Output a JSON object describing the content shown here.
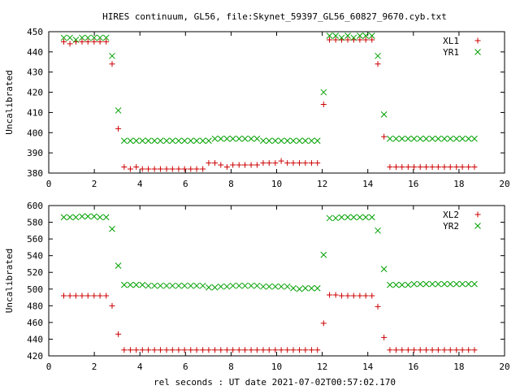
{
  "title": "HIRES continuum, GL56, file:Skynet_59397_GL56_60827_9670.cyb.txt",
  "xlabel": "rel seconds : UT date 2021-07-02T00:57:02.170",
  "colors": {
    "XL": "#cc0000",
    "YR": "#00a000"
  },
  "chart_data": [
    {
      "type": "scatter",
      "ylabel": "Uncalibrated",
      "xlim": [
        0,
        20
      ],
      "ylim": [
        380,
        450
      ],
      "xticks": [
        0,
        2,
        4,
        6,
        8,
        10,
        12,
        14,
        16,
        18,
        20
      ],
      "yticks": [
        380,
        390,
        400,
        410,
        420,
        430,
        440,
        450
      ],
      "legend_position": "top-right",
      "series": [
        {
          "name": "XL1",
          "marker": "plus",
          "color": "#cc0000",
          "x": [
            0.66,
            0.93,
            1.19,
            1.46,
            1.72,
            1.99,
            2.25,
            2.52,
            2.78,
            3.05,
            3.31,
            3.58,
            3.84,
            4.11,
            4.37,
            4.64,
            4.9,
            5.17,
            5.43,
            5.7,
            5.96,
            6.23,
            6.49,
            6.76,
            7.02,
            7.29,
            7.55,
            7.82,
            8.08,
            8.35,
            8.61,
            8.88,
            9.14,
            9.41,
            9.67,
            9.94,
            10.2,
            10.47,
            10.73,
            11.0,
            11.26,
            11.53,
            11.79,
            12.06,
            12.32,
            12.59,
            12.85,
            13.12,
            13.38,
            13.65,
            13.91,
            14.18,
            14.44,
            14.71,
            14.97,
            15.24,
            15.5,
            15.77,
            16.03,
            16.3,
            16.56,
            16.83,
            17.09,
            17.36,
            17.62,
            17.89,
            18.15,
            18.42,
            18.68
          ],
          "y": [
            445,
            444,
            445,
            445,
            445,
            445,
            445,
            445,
            434,
            402,
            383,
            382,
            383,
            382,
            382,
            382,
            382,
            382,
            382,
            382,
            382,
            382,
            382,
            382,
            385,
            385,
            384,
            383,
            384,
            384,
            384,
            384,
            384,
            385,
            385,
            385,
            386,
            385,
            385,
            385,
            385,
            385,
            385,
            414,
            446,
            446,
            446,
            446,
            446,
            446,
            446,
            446,
            434,
            398,
            383,
            383,
            383,
            383,
            383,
            383,
            383,
            383,
            383,
            383,
            383,
            383,
            383,
            383,
            383
          ]
        },
        {
          "name": "YR1",
          "marker": "cross",
          "color": "#00a000",
          "x": [
            0.66,
            0.93,
            1.19,
            1.46,
            1.72,
            1.99,
            2.25,
            2.52,
            2.78,
            3.05,
            3.31,
            3.58,
            3.84,
            4.11,
            4.37,
            4.64,
            4.9,
            5.17,
            5.43,
            5.7,
            5.96,
            6.23,
            6.49,
            6.76,
            7.02,
            7.29,
            7.55,
            7.82,
            8.08,
            8.35,
            8.61,
            8.88,
            9.14,
            9.41,
            9.67,
            9.94,
            10.2,
            10.47,
            10.73,
            11.0,
            11.26,
            11.53,
            11.79,
            12.06,
            12.32,
            12.59,
            12.85,
            13.12,
            13.38,
            13.65,
            13.91,
            14.18,
            14.44,
            14.71,
            14.97,
            15.24,
            15.5,
            15.77,
            16.03,
            16.3,
            16.56,
            16.83,
            17.09,
            17.36,
            17.62,
            17.89,
            18.15,
            18.42,
            18.68
          ],
          "y": [
            447,
            447,
            446,
            447,
            447,
            447,
            447,
            447,
            438,
            411,
            396,
            396,
            396,
            396,
            396,
            396,
            396,
            396,
            396,
            396,
            396,
            396,
            396,
            396,
            396,
            397,
            397,
            397,
            397,
            397,
            397,
            397,
            397,
            396,
            396,
            396,
            396,
            396,
            396,
            396,
            396,
            396,
            396,
            420,
            448,
            448,
            447,
            448,
            447,
            448,
            448,
            448,
            438,
            409,
            397,
            397,
            397,
            397,
            397,
            397,
            397,
            397,
            397,
            397,
            397,
            397,
            397,
            397,
            397
          ]
        }
      ]
    },
    {
      "type": "scatter",
      "ylabel": "Uncalibrated",
      "xlim": [
        0,
        20
      ],
      "ylim": [
        420,
        600
      ],
      "xticks": [
        0,
        2,
        4,
        6,
        8,
        10,
        12,
        14,
        16,
        18,
        20
      ],
      "yticks": [
        420,
        440,
        460,
        480,
        500,
        520,
        540,
        560,
        580,
        600
      ],
      "legend_position": "top-right",
      "series": [
        {
          "name": "XL2",
          "marker": "plus",
          "color": "#cc0000",
          "x": [
            0.66,
            0.93,
            1.19,
            1.46,
            1.72,
            1.99,
            2.25,
            2.52,
            2.78,
            3.05,
            3.31,
            3.58,
            3.84,
            4.11,
            4.37,
            4.64,
            4.9,
            5.17,
            5.43,
            5.7,
            5.96,
            6.23,
            6.49,
            6.76,
            7.02,
            7.29,
            7.55,
            7.82,
            8.08,
            8.35,
            8.61,
            8.88,
            9.14,
            9.41,
            9.67,
            9.94,
            10.2,
            10.47,
            10.73,
            11.0,
            11.26,
            11.53,
            11.79,
            12.06,
            12.32,
            12.59,
            12.85,
            13.12,
            13.38,
            13.65,
            13.91,
            14.18,
            14.44,
            14.71,
            14.97,
            15.24,
            15.5,
            15.77,
            16.03,
            16.3,
            16.56,
            16.83,
            17.09,
            17.36,
            17.62,
            17.89,
            18.15,
            18.42,
            18.68
          ],
          "y": [
            492,
            492,
            492,
            492,
            492,
            492,
            492,
            492,
            480,
            446,
            427,
            427,
            427,
            427,
            427,
            427,
            427,
            427,
            427,
            427,
            427,
            427,
            427,
            427,
            427,
            427,
            427,
            427,
            427,
            427,
            427,
            427,
            427,
            427,
            427,
            427,
            427,
            427,
            427,
            427,
            427,
            427,
            427,
            459,
            493,
            493,
            492,
            492,
            492,
            492,
            492,
            492,
            479,
            442,
            427,
            427,
            427,
            427,
            427,
            427,
            427,
            427,
            427,
            427,
            427,
            427,
            427,
            427,
            427
          ]
        },
        {
          "name": "YR2",
          "marker": "cross",
          "color": "#00a000",
          "x": [
            0.66,
            0.93,
            1.19,
            1.46,
            1.72,
            1.99,
            2.25,
            2.52,
            2.78,
            3.05,
            3.31,
            3.58,
            3.84,
            4.11,
            4.37,
            4.64,
            4.9,
            5.17,
            5.43,
            5.7,
            5.96,
            6.23,
            6.49,
            6.76,
            7.02,
            7.29,
            7.55,
            7.82,
            8.08,
            8.35,
            8.61,
            8.88,
            9.14,
            9.41,
            9.67,
            9.94,
            10.2,
            10.47,
            10.73,
            11.0,
            11.26,
            11.53,
            11.79,
            12.06,
            12.32,
            12.59,
            12.85,
            13.12,
            13.38,
            13.65,
            13.91,
            14.18,
            14.44,
            14.71,
            14.97,
            15.24,
            15.5,
            15.77,
            16.03,
            16.3,
            16.56,
            16.83,
            17.09,
            17.36,
            17.62,
            17.89,
            18.15,
            18.42,
            18.68
          ],
          "y": [
            586,
            586,
            586,
            587,
            587,
            587,
            586,
            586,
            572,
            528,
            505,
            505,
            505,
            505,
            504,
            504,
            504,
            504,
            504,
            504,
            504,
            504,
            504,
            504,
            502,
            502,
            503,
            503,
            504,
            504,
            504,
            504,
            504,
            503,
            503,
            503,
            503,
            503,
            501,
            500,
            501,
            501,
            501,
            541,
            585,
            585,
            586,
            586,
            586,
            586,
            586,
            586,
            570,
            524,
            505,
            505,
            505,
            505,
            506,
            506,
            506,
            506,
            506,
            506,
            506,
            506,
            506,
            506,
            506
          ]
        }
      ]
    }
  ]
}
